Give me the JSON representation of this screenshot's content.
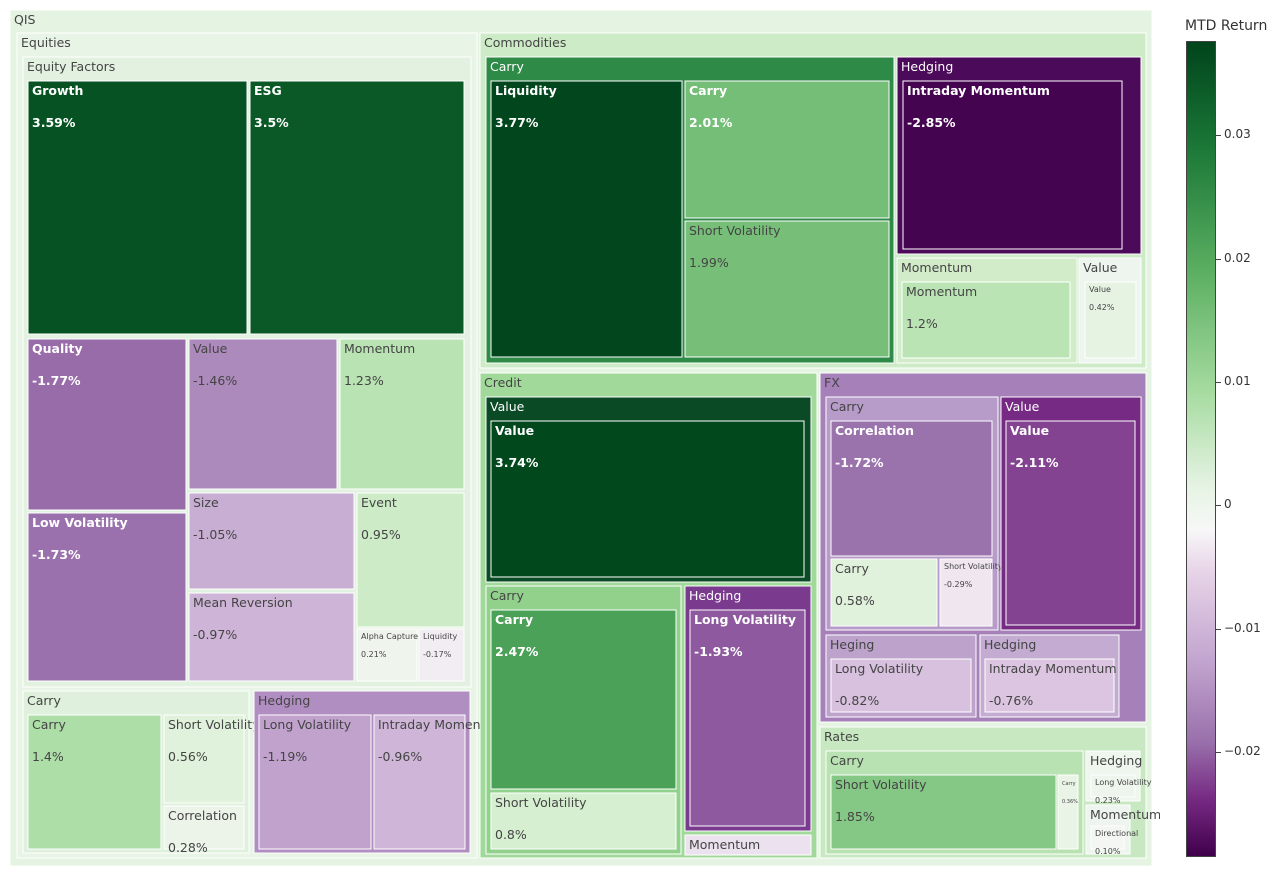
{
  "colorbar": {
    "title": "MTD Return",
    "ticks": [
      "0.03",
      "0.02",
      "0.01",
      "0",
      "−0.01",
      "−0.02"
    ]
  },
  "chart_data": {
    "type": "treemap",
    "title": "",
    "root": "QIS",
    "color_scale": "PRGn",
    "colorbar_title": "MTD Return",
    "color_range": [
      -0.029,
      0.038
    ],
    "nodes": [
      {
        "id": "QIS",
        "label": "QIS",
        "parent": ""
      },
      {
        "id": "Equities",
        "label": "Equities",
        "parent": "QIS"
      },
      {
        "id": "Equities/Equity Factors",
        "label": "Equity Factors",
        "parent": "Equities"
      },
      {
        "id": "Equities/Equity Factors/Growth",
        "label": "Growth",
        "parent": "Equities/Equity Factors",
        "value": 3.59,
        "text": "3.59%"
      },
      {
        "id": "Equities/Equity Factors/ESG",
        "label": "ESG",
        "parent": "Equities/Equity Factors",
        "value": 3.5,
        "text": "3.5%"
      },
      {
        "id": "Equities/Equity Factors/Quality",
        "label": "Quality",
        "parent": "Equities/Equity Factors",
        "value": -1.77,
        "text": "-1.77%"
      },
      {
        "id": "Equities/Equity Factors/Low Volatility",
        "label": "Low Volatility",
        "parent": "Equities/Equity Factors",
        "value": -1.73,
        "text": "-1.73%"
      },
      {
        "id": "Equities/Equity Factors/Value",
        "label": "Value",
        "parent": "Equities/Equity Factors",
        "value": -1.46,
        "text": "-1.46%"
      },
      {
        "id": "Equities/Equity Factors/Momentum",
        "label": "Momentum",
        "parent": "Equities/Equity Factors",
        "value": 1.23,
        "text": "1.23%"
      },
      {
        "id": "Equities/Equity Factors/Size",
        "label": "Size",
        "parent": "Equities/Equity Factors",
        "value": -1.05,
        "text": "-1.05%"
      },
      {
        "id": "Equities/Equity Factors/Event",
        "label": "Event",
        "parent": "Equities/Equity Factors",
        "value": 0.95,
        "text": "0.95%"
      },
      {
        "id": "Equities/Equity Factors/Mean Reversion",
        "label": "Mean Reversion",
        "parent": "Equities/Equity Factors",
        "value": -0.97,
        "text": "-0.97%"
      },
      {
        "id": "Equities/Equity Factors/Alpha Capture",
        "label": "Alpha Capture",
        "parent": "Equities/Equity Factors",
        "value": 0.21,
        "text": "0.21%"
      },
      {
        "id": "Equities/Equity Factors/Liquidity",
        "label": "Liquidity",
        "parent": "Equities/Equity Factors",
        "value": -0.17,
        "text": "-0.17%"
      },
      {
        "id": "Equities/Carry",
        "label": "Carry",
        "parent": "Equities"
      },
      {
        "id": "Equities/Carry/Carry",
        "label": "Carry",
        "parent": "Equities/Carry",
        "value": 1.4,
        "text": "1.4%"
      },
      {
        "id": "Equities/Carry/Short Volatility",
        "label": "Short Volatility",
        "parent": "Equities/Carry",
        "value": 0.56,
        "text": "0.56%"
      },
      {
        "id": "Equities/Carry/Correlation",
        "label": "Correlation",
        "parent": "Equities/Carry",
        "value": 0.28,
        "text": "0.28%"
      },
      {
        "id": "Equities/Hedging",
        "label": "Hedging",
        "parent": "Equities"
      },
      {
        "id": "Equities/Hedging/Long Volatility",
        "label": "Long Volatility",
        "parent": "Equities/Hedging",
        "value": -1.19,
        "text": "-1.19%"
      },
      {
        "id": "Equities/Hedging/Intraday Momentum",
        "label": "Intraday Momentum",
        "parent": "Equities/Hedging",
        "value": -0.96,
        "text": "-0.96%"
      },
      {
        "id": "Commodities",
        "label": "Commodities",
        "parent": "QIS"
      },
      {
        "id": "Commodities/Carry",
        "label": "Carry",
        "parent": "Commodities"
      },
      {
        "id": "Commodities/Carry/Liquidity",
        "label": "Liquidity",
        "parent": "Commodities/Carry",
        "value": 3.77,
        "text": "3.77%"
      },
      {
        "id": "Commodities/Carry/Carry",
        "label": "Carry",
        "parent": "Commodities/Carry",
        "value": 2.01,
        "text": "2.01%"
      },
      {
        "id": "Commodities/Carry/Short Volatility",
        "label": "Short Volatility",
        "parent": "Commodities/Carry",
        "value": 1.99,
        "text": "1.99%"
      },
      {
        "id": "Commodities/Hedging",
        "label": "Hedging",
        "parent": "Commodities"
      },
      {
        "id": "Commodities/Hedging/Intraday Momentum",
        "label": "Intraday Momentum",
        "parent": "Commodities/Hedging",
        "value": -2.85,
        "text": "-2.85%"
      },
      {
        "id": "Commodities/Momentum",
        "label": "Momentum",
        "parent": "Commodities"
      },
      {
        "id": "Commodities/Momentum/Momentum",
        "label": "Momentum",
        "parent": "Commodities/Momentum",
        "value": 1.2,
        "text": "1.2%"
      },
      {
        "id": "Commodities/Value",
        "label": "Value",
        "parent": "Commodities"
      },
      {
        "id": "Commodities/Value/Value",
        "label": "Value",
        "parent": "Commodities/Value",
        "value": 0.42,
        "text": "0.42%"
      },
      {
        "id": "Credit",
        "label": "Credit",
        "parent": "QIS"
      },
      {
        "id": "Credit/Value",
        "label": "Value",
        "parent": "Credit"
      },
      {
        "id": "Credit/Value/Value",
        "label": "Value",
        "parent": "Credit/Value",
        "value": 3.74,
        "text": "3.74%"
      },
      {
        "id": "Credit/Carry",
        "label": "Carry",
        "parent": "Credit"
      },
      {
        "id": "Credit/Carry/Carry",
        "label": "Carry",
        "parent": "Credit/Carry",
        "value": 2.47,
        "text": "2.47%"
      },
      {
        "id": "Credit/Carry/Short Volatility",
        "label": "Short Volatility",
        "parent": "Credit/Carry",
        "value": 0.8,
        "text": "0.8%"
      },
      {
        "id": "Credit/Hedging",
        "label": "Hedging",
        "parent": "Credit"
      },
      {
        "id": "Credit/Hedging/Long Volatility",
        "label": "Long Volatility",
        "parent": "Credit/Hedging",
        "value": -1.93,
        "text": "-1.93%"
      },
      {
        "id": "Credit/Momentum",
        "label": "Momentum",
        "parent": "Credit"
      },
      {
        "id": "FX",
        "label": "FX",
        "parent": "QIS"
      },
      {
        "id": "FX/Carry",
        "label": "Carry",
        "parent": "FX"
      },
      {
        "id": "FX/Carry/Correlation",
        "label": "Correlation",
        "parent": "FX/Carry",
        "value": -1.72,
        "text": "-1.72%"
      },
      {
        "id": "FX/Carry/Carry",
        "label": "Carry",
        "parent": "FX/Carry",
        "value": 0.58,
        "text": "0.58%"
      },
      {
        "id": "FX/Carry/Short Volatility",
        "label": "Short Volatility",
        "parent": "FX/Carry",
        "value": -0.29,
        "text": "-0.29%"
      },
      {
        "id": "FX/Value",
        "label": "Value",
        "parent": "FX"
      },
      {
        "id": "FX/Value/Value",
        "label": "Value",
        "parent": "FX/Value",
        "value": -2.11,
        "text": "-2.11%"
      },
      {
        "id": "FX/Heging",
        "label": "Heging",
        "parent": "FX"
      },
      {
        "id": "FX/Heging/Long Volatility",
        "label": "Long Volatility",
        "parent": "FX/Heging",
        "value": -0.82,
        "text": "-0.82%"
      },
      {
        "id": "FX/Hedging",
        "label": "Hedging",
        "parent": "FX"
      },
      {
        "id": "FX/Hedging/Intraday Momentum",
        "label": "Intraday Momentum",
        "parent": "FX/Hedging",
        "value": -0.76,
        "text": "-0.76%"
      },
      {
        "id": "Rates",
        "label": "Rates",
        "parent": "QIS"
      },
      {
        "id": "Rates/Carry",
        "label": "Carry",
        "parent": "Rates"
      },
      {
        "id": "Rates/Carry/Short Volatility",
        "label": "Short Volatility",
        "parent": "Rates/Carry",
        "value": 1.85,
        "text": "1.85%"
      },
      {
        "id": "Rates/Carry/Carry",
        "label": "Carry",
        "parent": "Rates/Carry",
        "value": 0.36,
        "text": "0.36%"
      },
      {
        "id": "Rates/Hedging",
        "label": "Hedging",
        "parent": "Rates"
      },
      {
        "id": "Rates/Hedging/Long Volatility",
        "label": "Long Volatility",
        "parent": "Rates/Hedging",
        "value": 0.23,
        "text": "0.23%"
      },
      {
        "id": "Rates/Momentum",
        "label": "Momentum",
        "parent": "Rates"
      },
      {
        "id": "Rates/Momentum/Directional",
        "label": "Directional",
        "parent": "Rates/Momentum",
        "value": 0.1,
        "text": "0.10%"
      }
    ]
  }
}
